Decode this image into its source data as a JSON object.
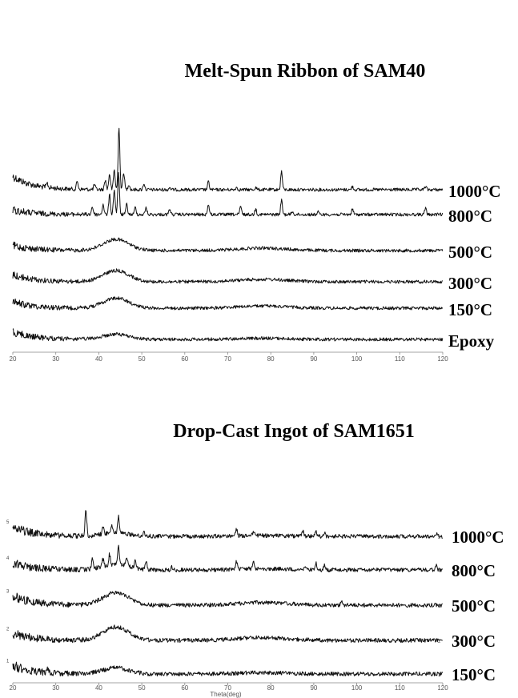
{
  "chart_data": [
    {
      "type": "line",
      "title": "Melt-Spun Ribbon of SAM40",
      "xlabel": "",
      "ylabel": "",
      "xlim": [
        20,
        120
      ],
      "x_ticks": [
        20,
        30,
        40,
        50,
        60,
        70,
        80,
        90,
        100,
        110,
        120
      ],
      "series": [
        {
          "name": "1000°C",
          "baseline": 0.95,
          "broad_peak": 0,
          "decay": 4.2,
          "peaks": [
            [
              28,
              0.5
            ],
            [
              35,
              1.0
            ],
            [
              39,
              0.6
            ],
            [
              41.5,
              1.2
            ],
            [
              42.5,
              2.0
            ],
            [
              43.6,
              2.5
            ],
            [
              44.7,
              8.0
            ],
            [
              45.8,
              2.2
            ],
            [
              47,
              0.7
            ],
            [
              50.5,
              0.8
            ],
            [
              56.5,
              0.3
            ],
            [
              65.5,
              1.0
            ],
            [
              72,
              0.3
            ],
            [
              76.5,
              0.3
            ],
            [
              82.5,
              2.3
            ],
            [
              99,
              0.4
            ],
            [
              116,
              0.4
            ]
          ]
        },
        {
          "name": "800°C",
          "baseline": 0.95,
          "broad_peak": 0,
          "decay": 1.4,
          "peaks": [
            [
              38.5,
              1.0
            ],
            [
              41,
              1.3
            ],
            [
              42.5,
              2.5
            ],
            [
              43.6,
              3.2
            ],
            [
              44.6,
              5.2
            ],
            [
              46.5,
              1.3
            ],
            [
              48.5,
              0.9
            ],
            [
              51,
              0.9
            ],
            [
              56.5,
              0.7
            ],
            [
              65.5,
              1.3
            ],
            [
              73,
              1.0
            ],
            [
              76.5,
              0.7
            ],
            [
              82.5,
              1.8
            ],
            [
              85,
              0.4
            ],
            [
              91,
              0.3
            ],
            [
              99,
              0.7
            ],
            [
              116,
              0.8
            ]
          ]
        },
        {
          "name": "500°C",
          "baseline": 0.9,
          "broad_peak": 1.0,
          "decay": 1.6,
          "peaks": []
        },
        {
          "name": "300°C",
          "baseline": 0.9,
          "broad_peak": 1.0,
          "decay": 2.2,
          "peaks": []
        },
        {
          "name": "150°C",
          "baseline": 0.9,
          "broad_peak": 0.9,
          "decay": 2.0,
          "peaks": []
        },
        {
          "name": "Epoxy",
          "baseline": 0.9,
          "broad_peak": 0.45,
          "decay": 2.4,
          "peaks": []
        }
      ]
    },
    {
      "type": "line",
      "title": "Drop-Cast Ingot of SAM1651",
      "xlabel": "Theta(deg)",
      "ylabel": "",
      "xlim": [
        20,
        120
      ],
      "x_ticks": [
        20,
        30,
        40,
        50,
        60,
        70,
        80,
        90,
        100,
        110,
        120
      ],
      "series": [
        {
          "name": "1000°C",
          "index": "5",
          "baseline": 0.95,
          "broad_peak": 0.3,
          "decay": 3.2,
          "peaks": [
            [
              37,
              3.4
            ],
            [
              41,
              0.9
            ],
            [
              43,
              1.2
            ],
            [
              44.6,
              2.2
            ],
            [
              50.5,
              0.6
            ],
            [
              72,
              1.0
            ],
            [
              76,
              0.6
            ],
            [
              87.5,
              0.6
            ],
            [
              90.5,
              0.8
            ],
            [
              92.5,
              0.5
            ],
            [
              118.5,
              0.4
            ]
          ]
        },
        {
          "name": "800°C",
          "index": "4",
          "baseline": 0.95,
          "broad_peak": 0.5,
          "decay": 2.4,
          "peaks": [
            [
              38.5,
              1.2
            ],
            [
              41,
              1.0
            ],
            [
              42.5,
              1.4
            ],
            [
              44.6,
              2.4
            ],
            [
              46.5,
              1.2
            ],
            [
              48.5,
              1.0
            ],
            [
              51,
              1.1
            ],
            [
              57,
              0.4
            ],
            [
              72,
              1.1
            ],
            [
              76,
              0.9
            ],
            [
              88,
              0.6
            ],
            [
              90.5,
              0.9
            ],
            [
              92.5,
              0.6
            ],
            [
              118.5,
              0.5
            ]
          ]
        },
        {
          "name": "500°C",
          "index": "3",
          "baseline": 0.9,
          "broad_peak": 1.1,
          "decay": 3.0,
          "peaks": [
            [
              96.5,
              0.6
            ]
          ]
        },
        {
          "name": "300°C",
          "index": "2",
          "baseline": 0.9,
          "broad_peak": 1.2,
          "decay": 2.3,
          "peaks": []
        },
        {
          "name": "150°C",
          "index": "1",
          "baseline": 0.9,
          "broad_peak": 0.55,
          "decay": 2.8,
          "peaks": [
            [
              28,
              0.5
            ]
          ]
        }
      ]
    }
  ]
}
